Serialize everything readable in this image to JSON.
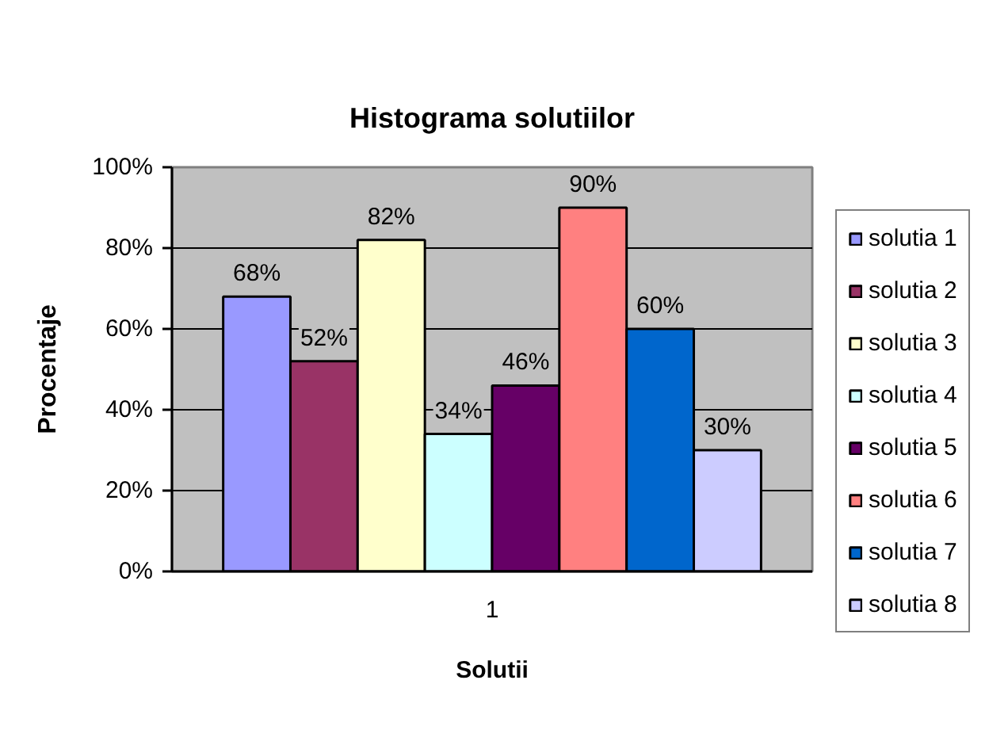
{
  "chart_data": {
    "type": "bar",
    "title": "Histograma solutiilor",
    "xlabel": "Solutii",
    "ylabel": "Procentaje",
    "categories": [
      "1"
    ],
    "series": [
      {
        "name": "solutia 1",
        "color": "#9999ff",
        "values": [
          68
        ],
        "value_labels": [
          "68%"
        ]
      },
      {
        "name": "solutia 2",
        "color": "#993366",
        "values": [
          52
        ],
        "value_labels": [
          "52%"
        ]
      },
      {
        "name": "solutia 3",
        "color": "#ffffcc",
        "values": [
          82
        ],
        "value_labels": [
          "82%"
        ]
      },
      {
        "name": "solutia 4",
        "color": "#ccffff",
        "values": [
          34
        ],
        "value_labels": [
          "34%"
        ]
      },
      {
        "name": "solutia 5",
        "color": "#660066",
        "values": [
          46
        ],
        "value_labels": [
          "46%"
        ]
      },
      {
        "name": "solutia 6",
        "color": "#ff8080",
        "values": [
          90
        ],
        "value_labels": [
          "90%"
        ]
      },
      {
        "name": "solutia 7",
        "color": "#0066cc",
        "values": [
          60
        ],
        "value_labels": [
          "60%"
        ]
      },
      {
        "name": "solutia 8",
        "color": "#ccccff",
        "values": [
          30
        ],
        "value_labels": [
          "30%"
        ]
      }
    ],
    "ylim": [
      0,
      100
    ],
    "yticks": [
      {
        "value": 0,
        "label": "0%"
      },
      {
        "value": 20,
        "label": "20%"
      },
      {
        "value": 40,
        "label": "40%"
      },
      {
        "value": 60,
        "label": "60%"
      },
      {
        "value": 80,
        "label": "80%"
      },
      {
        "value": 100,
        "label": "100%"
      }
    ],
    "grid": "y",
    "legend": "right"
  }
}
